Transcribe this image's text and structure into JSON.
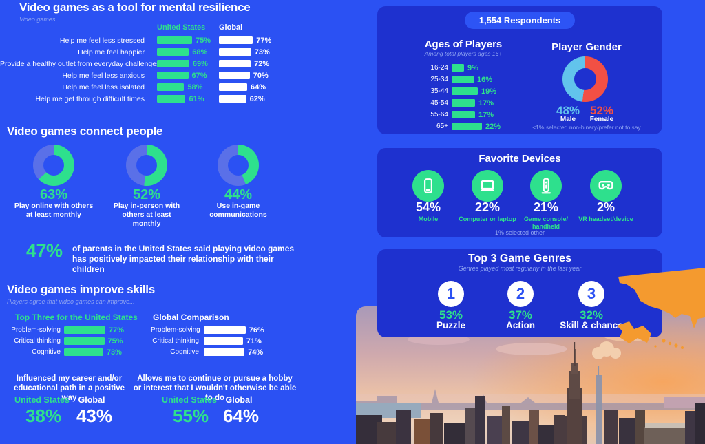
{
  "colors": {
    "page_blue": "#2b51f3",
    "panel_blue": "#1e31cf",
    "accent_green": "#2ee08d",
    "male_blue": "#62c4ec",
    "female_red": "#f25044",
    "donut_rest": "#5a70e8",
    "map_orange": "#f49a2f",
    "white": "#ffffff",
    "muted_blue": "#8fa4f2"
  },
  "section_resilience": {
    "title": "Video games as a tool for mental resilience",
    "subtitle": "Video games...",
    "col_us": "United States",
    "col_global": "Global",
    "rows": [
      {
        "label": "Help me feel less stressed",
        "us": 75,
        "us_d": "75%",
        "gl": 77,
        "gl_d": "77%"
      },
      {
        "label": "Help me feel happier",
        "us": 68,
        "us_d": "68%",
        "gl": 73,
        "gl_d": "73%"
      },
      {
        "label": "Provide a healthy outlet from everyday challenges",
        "us": 69,
        "us_d": "69%",
        "gl": 72,
        "gl_d": "72%"
      },
      {
        "label": "Help me feel less anxious",
        "us": 67,
        "us_d": "67%",
        "gl": 70,
        "gl_d": "70%"
      },
      {
        "label": "Help me feel less isolated",
        "us": 58,
        "us_d": "58%",
        "gl": 64,
        "gl_d": "64%"
      },
      {
        "label": "Help me get through difficult times",
        "us": 61,
        "us_d": "61%",
        "gl": 62,
        "gl_d": "62%"
      }
    ]
  },
  "section_connect": {
    "title": "Video games connect people",
    "donuts": [
      {
        "pct": 63,
        "pct_d": "63%",
        "label": "Play online with others\nat least monthly",
        "color": "#2ee08d",
        "rest": "#5a70e8"
      },
      {
        "pct": 52,
        "pct_d": "52%",
        "label": "Play in-person with\nothers at least\nmonthly",
        "color": "#2ee08d",
        "rest": "#5a70e8"
      },
      {
        "pct": 44,
        "pct_d": "44%",
        "label": "Use in-game\ncommunications",
        "color": "#2ee08d",
        "rest": "#5a70e8"
      }
    ],
    "callout_value": "47%",
    "callout_text": "of parents in the United States said playing video games has positively impacted their relationship with their children"
  },
  "section_skills": {
    "title": "Video games improve skills",
    "subtitle": "Players agree that video games can improve...",
    "us_heading": "Top Three for the United States",
    "global_heading": "Global Comparison",
    "us_rows": [
      {
        "label": "Problem-solving",
        "v": 77,
        "d": "77%"
      },
      {
        "label": "Critical thinking",
        "v": 75,
        "d": "75%"
      },
      {
        "label": "Cognitive",
        "v": 73,
        "d": "73%"
      }
    ],
    "global_rows": [
      {
        "label": "Problem-solving",
        "v": 76,
        "d": "76%"
      },
      {
        "label": "Critical thinking",
        "v": 71,
        "d": "71%"
      },
      {
        "label": "Cognitive",
        "v": 74,
        "d": "74%"
      }
    ],
    "stat_a": {
      "heading": "Influenced my career and/or educational path in a positive way",
      "us_label": "United States",
      "global_label": "Global",
      "us": "38%",
      "global": "43%"
    },
    "stat_b": {
      "heading": "Allows me to continue or pursue a hobby or interest that I wouldn't otherwise be able to do",
      "us_label": "United States",
      "global_label": "Global",
      "us": "55%",
      "global": "64%"
    }
  },
  "panel_respondents": {
    "badge": "1,554 Respondents",
    "ages": {
      "title": "Ages of Players",
      "subtitle": "Among total players ages 16+",
      "rows": [
        {
          "label": "16-24",
          "v": 9,
          "d": "9%"
        },
        {
          "label": "25-34",
          "v": 16,
          "d": "16%"
        },
        {
          "label": "35-44",
          "v": 19,
          "d": "19%"
        },
        {
          "label": "45-54",
          "v": 17,
          "d": "17%"
        },
        {
          "label": "55-64",
          "v": 17,
          "d": "17%"
        },
        {
          "label": "65+",
          "v": 22,
          "d": "22%"
        }
      ]
    },
    "gender": {
      "title": "Player Gender",
      "donut": {
        "pct": 52,
        "color": "#f25044",
        "rest": "#62c4ec"
      },
      "male_pct": "48%",
      "male_label": "Male",
      "female_pct": "52%",
      "female_label": "Female",
      "footnote": "<1% selected non-binary/prefer not to say"
    }
  },
  "panel_devices": {
    "title": "Favorite Devices",
    "items": [
      {
        "icon": "mobile-icon",
        "pct": "54%",
        "label": "Mobile"
      },
      {
        "icon": "laptop-icon",
        "pct": "22%",
        "label": "Computer or laptop"
      },
      {
        "icon": "console-icon",
        "pct": "21%",
        "label": "Game console/\nhandheld"
      },
      {
        "icon": "vr-icon",
        "pct": "2%",
        "label": "VR headset/device"
      }
    ],
    "footnote": "1% selected other"
  },
  "panel_genres": {
    "title": "Top 3 Game Genres",
    "subtitle": "Genres played most regularly in the last year",
    "items": [
      {
        "rank": "1",
        "pct": "53%",
        "label": "Puzzle"
      },
      {
        "rank": "2",
        "pct": "37%",
        "label": "Action"
      },
      {
        "rank": "3",
        "pct": "32%",
        "label": "Skill & chance"
      }
    ]
  },
  "chart_data": [
    {
      "type": "bar",
      "title": "Video games as a tool for mental resilience",
      "orientation": "horizontal",
      "unit": "%",
      "categories": [
        "Help me feel less stressed",
        "Help me feel happier",
        "Provide a healthy outlet from everyday challenges",
        "Help me feel less anxious",
        "Help me feel less isolated",
        "Help me get through difficult times"
      ],
      "series": [
        {
          "name": "United States",
          "values": [
            75,
            68,
            69,
            67,
            58,
            61
          ]
        },
        {
          "name": "Global",
          "values": [
            77,
            73,
            72,
            70,
            64,
            62
          ]
        }
      ]
    },
    {
      "type": "pie",
      "title": "Video games connect people",
      "style": "three separate donuts",
      "slices": [
        {
          "label": "Play online with others at least monthly",
          "value": 63
        },
        {
          "label": "Play in-person with others at least monthly",
          "value": 52
        },
        {
          "label": "Use in-game communications",
          "value": 44
        }
      ]
    },
    {
      "type": "bar",
      "title": "Video games improve skills — Top Three for the United States",
      "orientation": "horizontal",
      "unit": "%",
      "categories": [
        "Problem-solving",
        "Critical thinking",
        "Cognitive"
      ],
      "values": [
        77,
        75,
        73
      ]
    },
    {
      "type": "bar",
      "title": "Video games improve skills — Global Comparison",
      "orientation": "horizontal",
      "unit": "%",
      "categories": [
        "Problem-solving",
        "Critical thinking",
        "Cognitive"
      ],
      "values": [
        76,
        71,
        74
      ]
    },
    {
      "type": "bar",
      "title": "Ages of Players (1,554 Respondents)",
      "orientation": "horizontal",
      "unit": "%",
      "categories": [
        "16-24",
        "25-34",
        "35-44",
        "45-54",
        "55-64",
        "65+"
      ],
      "values": [
        9,
        16,
        19,
        17,
        17,
        22
      ]
    },
    {
      "type": "pie",
      "title": "Player Gender",
      "slices": [
        {
          "label": "Male",
          "value": 48
        },
        {
          "label": "Female",
          "value": 52
        }
      ],
      "note": "<1% selected non-binary/prefer not to say"
    },
    {
      "type": "bar",
      "title": "Favorite Devices",
      "unit": "%",
      "categories": [
        "Mobile",
        "Computer or laptop",
        "Game console/handheld",
        "VR headset/device"
      ],
      "values": [
        54,
        22,
        21,
        2
      ],
      "note": "1% selected other"
    },
    {
      "type": "bar",
      "title": "Top 3 Game Genres",
      "unit": "%",
      "categories": [
        "Puzzle",
        "Action",
        "Skill & chance"
      ],
      "values": [
        53,
        37,
        32
      ]
    }
  ]
}
